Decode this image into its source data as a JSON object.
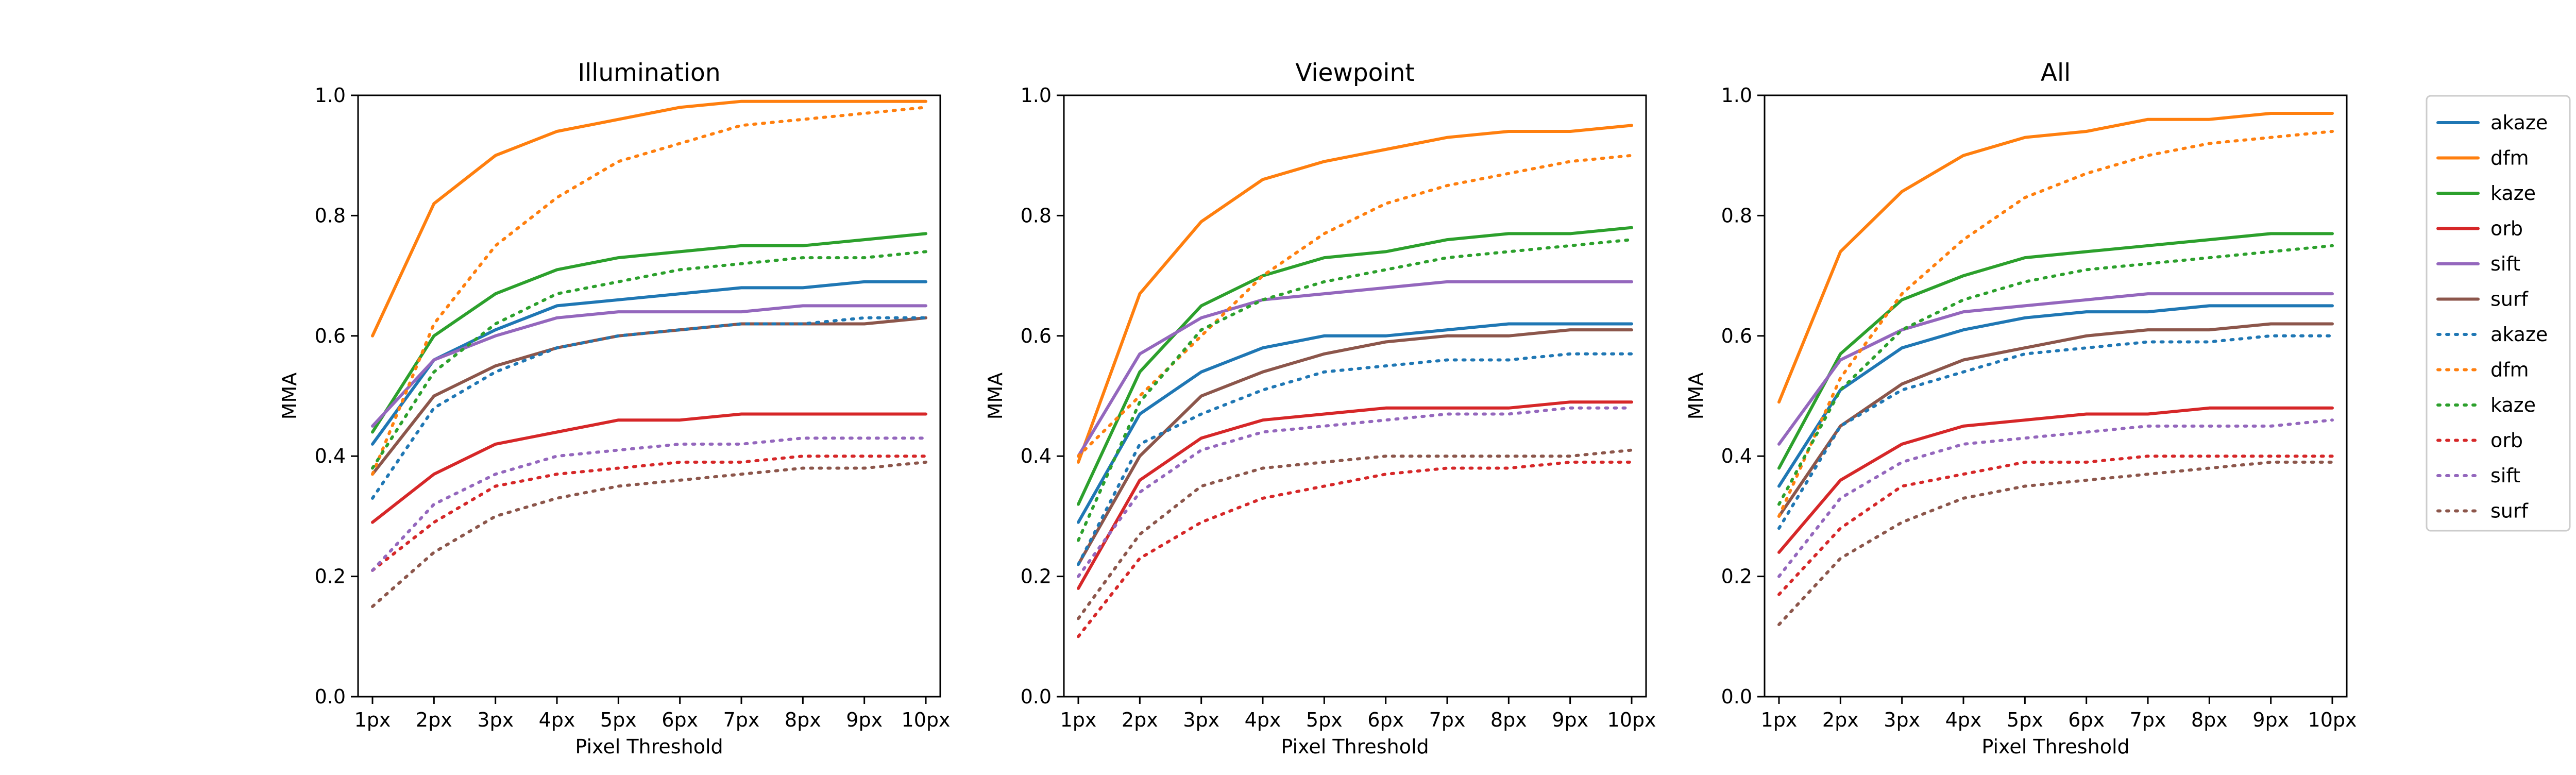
{
  "chart_data": [
    {
      "type": "line",
      "title": "Illumination",
      "xlabel": "Pixel Threshold",
      "ylabel": "MMA",
      "categories": [
        "1px",
        "2px",
        "3px",
        "4px",
        "5px",
        "6px",
        "7px",
        "8px",
        "9px",
        "10px"
      ],
      "ylim": [
        0.0,
        1.0
      ],
      "yticks": [
        "0.0",
        "0.2",
        "0.4",
        "0.6",
        "0.8",
        "1.0"
      ],
      "grid": false,
      "series": [
        {
          "name": "akaze",
          "style": "solid",
          "color": "#1f77b4",
          "values": [
            0.42,
            0.56,
            0.61,
            0.65,
            0.66,
            0.67,
            0.68,
            0.68,
            0.69,
            0.69
          ]
        },
        {
          "name": "dfm",
          "style": "solid",
          "color": "#ff7f0e",
          "values": [
            0.6,
            0.82,
            0.9,
            0.94,
            0.96,
            0.98,
            0.99,
            0.99,
            0.99,
            0.99
          ]
        },
        {
          "name": "kaze",
          "style": "solid",
          "color": "#2ca02c",
          "values": [
            0.44,
            0.6,
            0.67,
            0.71,
            0.73,
            0.74,
            0.75,
            0.75,
            0.76,
            0.77
          ]
        },
        {
          "name": "orb",
          "style": "solid",
          "color": "#d62728",
          "values": [
            0.29,
            0.37,
            0.42,
            0.44,
            0.46,
            0.46,
            0.47,
            0.47,
            0.47,
            0.47
          ]
        },
        {
          "name": "sift",
          "style": "solid",
          "color": "#9467bd",
          "values": [
            0.45,
            0.56,
            0.6,
            0.63,
            0.64,
            0.64,
            0.64,
            0.65,
            0.65,
            0.65
          ]
        },
        {
          "name": "surf",
          "style": "solid",
          "color": "#8c564b",
          "values": [
            0.37,
            0.5,
            0.55,
            0.58,
            0.6,
            0.61,
            0.62,
            0.62,
            0.62,
            0.63
          ]
        },
        {
          "name": "akaze",
          "style": "dotted",
          "color": "#1f77b4",
          "values": [
            0.33,
            0.48,
            0.54,
            0.58,
            0.6,
            0.61,
            0.62,
            0.62,
            0.63,
            0.63
          ]
        },
        {
          "name": "dfm",
          "style": "dotted",
          "color": "#ff7f0e",
          "values": [
            0.37,
            0.62,
            0.75,
            0.83,
            0.89,
            0.92,
            0.95,
            0.96,
            0.97,
            0.98
          ]
        },
        {
          "name": "kaze",
          "style": "dotted",
          "color": "#2ca02c",
          "values": [
            0.38,
            0.54,
            0.62,
            0.67,
            0.69,
            0.71,
            0.72,
            0.73,
            0.73,
            0.74
          ]
        },
        {
          "name": "orb",
          "style": "dotted",
          "color": "#d62728",
          "values": [
            0.21,
            0.29,
            0.35,
            0.37,
            0.38,
            0.39,
            0.39,
            0.4,
            0.4,
            0.4
          ]
        },
        {
          "name": "sift",
          "style": "dotted",
          "color": "#9467bd",
          "values": [
            0.21,
            0.32,
            0.37,
            0.4,
            0.41,
            0.42,
            0.42,
            0.43,
            0.43,
            0.43
          ]
        },
        {
          "name": "surf",
          "style": "dotted",
          "color": "#8c564b",
          "values": [
            0.15,
            0.24,
            0.3,
            0.33,
            0.35,
            0.36,
            0.37,
            0.38,
            0.38,
            0.39
          ]
        }
      ]
    },
    {
      "type": "line",
      "title": "Viewpoint",
      "xlabel": "Pixel Threshold",
      "ylabel": "MMA",
      "categories": [
        "1px",
        "2px",
        "3px",
        "4px",
        "5px",
        "6px",
        "7px",
        "8px",
        "9px",
        "10px"
      ],
      "ylim": [
        0.0,
        1.0
      ],
      "yticks": [
        "0.0",
        "0.2",
        "0.4",
        "0.6",
        "0.8",
        "1.0"
      ],
      "grid": false,
      "series": [
        {
          "name": "akaze",
          "style": "solid",
          "color": "#1f77b4",
          "values": [
            0.29,
            0.47,
            0.54,
            0.58,
            0.6,
            0.6,
            0.61,
            0.62,
            0.62,
            0.62
          ]
        },
        {
          "name": "dfm",
          "style": "solid",
          "color": "#ff7f0e",
          "values": [
            0.39,
            0.67,
            0.79,
            0.86,
            0.89,
            0.91,
            0.93,
            0.94,
            0.94,
            0.95
          ]
        },
        {
          "name": "kaze",
          "style": "solid",
          "color": "#2ca02c",
          "values": [
            0.32,
            0.54,
            0.65,
            0.7,
            0.73,
            0.74,
            0.76,
            0.77,
            0.77,
            0.78
          ]
        },
        {
          "name": "orb",
          "style": "solid",
          "color": "#d62728",
          "values": [
            0.18,
            0.36,
            0.43,
            0.46,
            0.47,
            0.48,
            0.48,
            0.48,
            0.49,
            0.49
          ]
        },
        {
          "name": "sift",
          "style": "solid",
          "color": "#9467bd",
          "values": [
            0.4,
            0.57,
            0.63,
            0.66,
            0.67,
            0.68,
            0.69,
            0.69,
            0.69,
            0.69
          ]
        },
        {
          "name": "surf",
          "style": "solid",
          "color": "#8c564b",
          "values": [
            0.22,
            0.4,
            0.5,
            0.54,
            0.57,
            0.59,
            0.6,
            0.6,
            0.61,
            0.61
          ]
        },
        {
          "name": "akaze",
          "style": "dotted",
          "color": "#1f77b4",
          "values": [
            0.22,
            0.42,
            0.47,
            0.51,
            0.54,
            0.55,
            0.56,
            0.56,
            0.57,
            0.57
          ]
        },
        {
          "name": "dfm",
          "style": "dotted",
          "color": "#ff7f0e",
          "values": [
            0.4,
            0.5,
            0.6,
            0.7,
            0.77,
            0.82,
            0.85,
            0.87,
            0.89,
            0.9
          ]
        },
        {
          "name": "kaze",
          "style": "dotted",
          "color": "#2ca02c",
          "values": [
            0.26,
            0.49,
            0.61,
            0.66,
            0.69,
            0.71,
            0.73,
            0.74,
            0.75,
            0.76
          ]
        },
        {
          "name": "orb",
          "style": "dotted",
          "color": "#d62728",
          "values": [
            0.1,
            0.23,
            0.29,
            0.33,
            0.35,
            0.37,
            0.38,
            0.38,
            0.39,
            0.39
          ]
        },
        {
          "name": "sift",
          "style": "dotted",
          "color": "#9467bd",
          "values": [
            0.2,
            0.34,
            0.41,
            0.44,
            0.45,
            0.46,
            0.47,
            0.47,
            0.48,
            0.48
          ]
        },
        {
          "name": "surf",
          "style": "dotted",
          "color": "#8c564b",
          "values": [
            0.13,
            0.27,
            0.35,
            0.38,
            0.39,
            0.4,
            0.4,
            0.4,
            0.4,
            0.41
          ]
        }
      ]
    },
    {
      "type": "line",
      "title": "All",
      "xlabel": "Pixel Threshold",
      "ylabel": "MMA",
      "categories": [
        "1px",
        "2px",
        "3px",
        "4px",
        "5px",
        "6px",
        "7px",
        "8px",
        "9px",
        "10px"
      ],
      "ylim": [
        0.0,
        1.0
      ],
      "yticks": [
        "0.0",
        "0.2",
        "0.4",
        "0.6",
        "0.8",
        "1.0"
      ],
      "grid": false,
      "series": [
        {
          "name": "akaze",
          "style": "solid",
          "color": "#1f77b4",
          "values": [
            0.35,
            0.51,
            0.58,
            0.61,
            0.63,
            0.64,
            0.64,
            0.65,
            0.65,
            0.65
          ]
        },
        {
          "name": "dfm",
          "style": "solid",
          "color": "#ff7f0e",
          "values": [
            0.49,
            0.74,
            0.84,
            0.9,
            0.93,
            0.94,
            0.96,
            0.96,
            0.97,
            0.97
          ]
        },
        {
          "name": "kaze",
          "style": "solid",
          "color": "#2ca02c",
          "values": [
            0.38,
            0.57,
            0.66,
            0.7,
            0.73,
            0.74,
            0.75,
            0.76,
            0.77,
            0.77
          ]
        },
        {
          "name": "orb",
          "style": "solid",
          "color": "#d62728",
          "values": [
            0.24,
            0.36,
            0.42,
            0.45,
            0.46,
            0.47,
            0.47,
            0.48,
            0.48,
            0.48
          ]
        },
        {
          "name": "sift",
          "style": "solid",
          "color": "#9467bd",
          "values": [
            0.42,
            0.56,
            0.61,
            0.64,
            0.65,
            0.66,
            0.67,
            0.67,
            0.67,
            0.67
          ]
        },
        {
          "name": "surf",
          "style": "solid",
          "color": "#8c564b",
          "values": [
            0.3,
            0.45,
            0.52,
            0.56,
            0.58,
            0.6,
            0.61,
            0.61,
            0.62,
            0.62
          ]
        },
        {
          "name": "akaze",
          "style": "dotted",
          "color": "#1f77b4",
          "values": [
            0.28,
            0.45,
            0.51,
            0.54,
            0.57,
            0.58,
            0.59,
            0.59,
            0.6,
            0.6
          ]
        },
        {
          "name": "dfm",
          "style": "dotted",
          "color": "#ff7f0e",
          "values": [
            0.3,
            0.53,
            0.67,
            0.76,
            0.83,
            0.87,
            0.9,
            0.92,
            0.93,
            0.94
          ]
        },
        {
          "name": "kaze",
          "style": "dotted",
          "color": "#2ca02c",
          "values": [
            0.32,
            0.51,
            0.61,
            0.66,
            0.69,
            0.71,
            0.72,
            0.73,
            0.74,
            0.75
          ]
        },
        {
          "name": "orb",
          "style": "dotted",
          "color": "#d62728",
          "values": [
            0.17,
            0.28,
            0.35,
            0.37,
            0.39,
            0.39,
            0.4,
            0.4,
            0.4,
            0.4
          ]
        },
        {
          "name": "sift",
          "style": "dotted",
          "color": "#9467bd",
          "values": [
            0.2,
            0.33,
            0.39,
            0.42,
            0.43,
            0.44,
            0.45,
            0.45,
            0.45,
            0.46
          ]
        },
        {
          "name": "surf",
          "style": "dotted",
          "color": "#8c564b",
          "values": [
            0.12,
            0.23,
            0.29,
            0.33,
            0.35,
            0.36,
            0.37,
            0.38,
            0.39,
            0.39
          ]
        }
      ]
    }
  ],
  "legend": {
    "placement": "right",
    "entries": [
      {
        "label": "akaze",
        "style": "solid",
        "color": "#1f77b4"
      },
      {
        "label": "dfm",
        "style": "solid",
        "color": "#ff7f0e"
      },
      {
        "label": "kaze",
        "style": "solid",
        "color": "#2ca02c"
      },
      {
        "label": "orb",
        "style": "solid",
        "color": "#d62728"
      },
      {
        "label": "sift",
        "style": "solid",
        "color": "#9467bd"
      },
      {
        "label": "surf",
        "style": "solid",
        "color": "#8c564b"
      },
      {
        "label": "akaze",
        "style": "dotted",
        "color": "#1f77b4"
      },
      {
        "label": "dfm",
        "style": "dotted",
        "color": "#ff7f0e"
      },
      {
        "label": "kaze",
        "style": "dotted",
        "color": "#2ca02c"
      },
      {
        "label": "orb",
        "style": "dotted",
        "color": "#d62728"
      },
      {
        "label": "sift",
        "style": "dotted",
        "color": "#9467bd"
      },
      {
        "label": "surf",
        "style": "dotted",
        "color": "#8c564b"
      }
    ]
  }
}
